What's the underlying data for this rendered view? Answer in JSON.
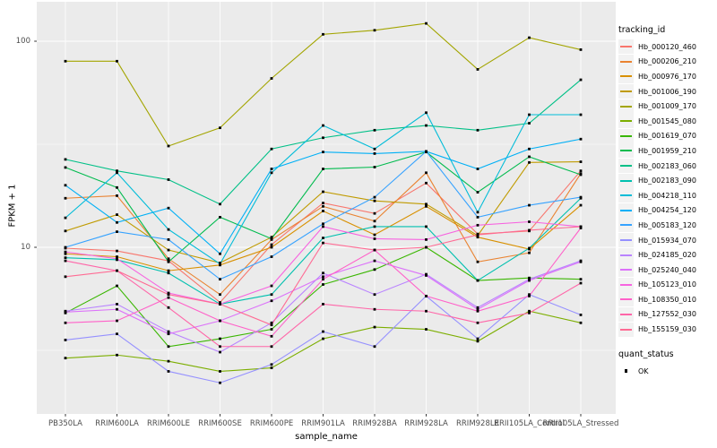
{
  "figure": {
    "background": "#FFFFFF",
    "panel_background": "#EBEBEB",
    "grid_color": "#FFFFFF",
    "tick_text_color": "#4D4D4D",
    "axis_title_color": "#000000",
    "point_color": "#000000"
  },
  "axes": {
    "y_title": "FPKM + 1",
    "x_title": "sample_name",
    "y_scale": "log10",
    "y_major_ticks": [
      {
        "label": "100",
        "value": 100
      },
      {
        "label": "10",
        "value": 10
      }
    ],
    "y_minor_gridlines": [
      31.623,
      3.1623
    ]
  },
  "legend": {
    "tracking_title": "tracking_id",
    "quant_title": "quant_status",
    "quant_items": [
      {
        "label": "OK",
        "marker": "black-square"
      }
    ]
  },
  "chart_data": {
    "type": "line",
    "title": "",
    "xlabel": "sample_name",
    "ylabel": "FPKM + 1",
    "y_scale": "log10",
    "ylim": [
      1.55,
      155
    ],
    "grid": true,
    "legend_position": "right",
    "point_marker": "black-square",
    "x_categories": [
      "PB350LA",
      "RRIM600LA",
      "RRIM600LE",
      "RRIM600SE",
      "RRIM600PE",
      "RRIM901LA",
      "RRIM928BA",
      "RRIM928LA",
      "RRIM928LE",
      "RRII105LA_Control",
      "RRII105LA_Stressed"
    ],
    "series": [
      {
        "name": "Hb_000120_460",
        "color": "#F8766D",
        "values": [
          9.9,
          9.6,
          8.6,
          5.4,
          10.3,
          16.4,
          14.6,
          20.5,
          11.6,
          12.0,
          23.5
        ]
      },
      {
        "name": "Hb_000206_210",
        "color": "#EA8331",
        "values": [
          17.3,
          17.8,
          8.8,
          5.9,
          10.9,
          15.8,
          13.4,
          23.0,
          8.5,
          9.4,
          22.8
        ]
      },
      {
        "name": "Hb_000976_170",
        "color": "#D89000",
        "values": [
          9.3,
          9.0,
          7.7,
          8.2,
          10.0,
          15.0,
          11.5,
          15.8,
          11.2,
          9.8,
          16.0
        ]
      },
      {
        "name": "Hb_001006_190",
        "color": "#C09B00",
        "values": [
          12.0,
          14.4,
          9.7,
          8.4,
          11.2,
          18.6,
          16.8,
          16.2,
          11.4,
          25.8,
          26.0
        ]
      },
      {
        "name": "Hb_001009_170",
        "color": "#A3A500",
        "values": [
          80,
          80,
          31,
          38,
          66,
          108,
          113,
          122,
          73,
          104,
          91
        ]
      },
      {
        "name": "Hb_001545_080",
        "color": "#7CAE00",
        "values": [
          2.9,
          3.0,
          2.8,
          2.5,
          2.6,
          3.6,
          4.1,
          4.0,
          3.5,
          4.9,
          4.3
        ]
      },
      {
        "name": "Hb_001619_070",
        "color": "#39B600",
        "values": [
          4.8,
          6.5,
          3.3,
          3.6,
          4.0,
          6.6,
          7.8,
          10.0,
          6.9,
          7.1,
          7.0
        ]
      },
      {
        "name": "Hb_001959_210",
        "color": "#00BB4E",
        "values": [
          24.4,
          19.5,
          8.5,
          14.0,
          11.0,
          24.0,
          24.5,
          29.0,
          18.5,
          27.5,
          22.5
        ]
      },
      {
        "name": "Hb_002183_060",
        "color": "#00C087",
        "values": [
          26.7,
          23.5,
          21.3,
          16.2,
          30.0,
          34.0,
          37.0,
          39.0,
          37.0,
          40.0,
          65.0
        ]
      },
      {
        "name": "Hb_002183_090",
        "color": "#00C0AF",
        "values": [
          8.9,
          8.7,
          7.5,
          5.3,
          5.9,
          11.1,
          12.6,
          12.6,
          6.9,
          9.9,
          17.3
        ]
      },
      {
        "name": "Hb_004218_110",
        "color": "#00BCD8",
        "values": [
          13.9,
          23.0,
          12.2,
          8.3,
          23.0,
          39.0,
          30.0,
          45.0,
          14.8,
          44.0,
          44.0
        ]
      },
      {
        "name": "Hb_004254_120",
        "color": "#00B0F6",
        "values": [
          20.0,
          13.2,
          15.5,
          9.3,
          24.0,
          29.0,
          28.5,
          29.2,
          24.0,
          30.0,
          33.5
        ]
      },
      {
        "name": "Hb_005183_120",
        "color": "#35A2FF",
        "values": [
          10.0,
          11.9,
          10.9,
          7.0,
          9.0,
          13.0,
          17.5,
          29.2,
          14.0,
          16.0,
          17.5
        ]
      },
      {
        "name": "Hb_015934_070",
        "color": "#9590FF",
        "values": [
          3.55,
          3.8,
          2.5,
          2.2,
          2.7,
          3.9,
          3.3,
          5.8,
          3.6,
          5.9,
          4.7
        ]
      },
      {
        "name": "Hb_024185_020",
        "color": "#B983FF",
        "values": [
          4.9,
          5.3,
          3.9,
          3.1,
          4.3,
          7.5,
          5.9,
          7.4,
          5.1,
          7.0,
          8.6
        ]
      },
      {
        "name": "Hb_025240_040",
        "color": "#DC71FA",
        "values": [
          4.85,
          5.0,
          3.8,
          4.4,
          5.5,
          7.2,
          8.6,
          7.3,
          5.0,
          6.9,
          8.5
        ]
      },
      {
        "name": "Hb_105123_010",
        "color": "#F763E0",
        "values": [
          9.5,
          8.8,
          6.0,
          5.3,
          6.5,
          12.6,
          11.0,
          10.9,
          12.8,
          13.3,
          12.6
        ]
      },
      {
        "name": "Hb_108350_010",
        "color": "#FF61C9",
        "values": [
          4.3,
          4.4,
          5.7,
          4.4,
          3.7,
          7.0,
          9.7,
          5.8,
          4.9,
          5.8,
          12.4
        ]
      },
      {
        "name": "Hb_127552_030",
        "color": "#FF65A8",
        "values": [
          8.6,
          7.7,
          5.1,
          3.3,
          3.3,
          5.3,
          5.0,
          4.9,
          4.3,
          4.8,
          6.7
        ]
      },
      {
        "name": "Hb_155159_030",
        "color": "#FF6B94",
        "values": [
          7.2,
          7.7,
          5.9,
          5.3,
          4.2,
          10.5,
          9.7,
          10.0,
          11.5,
          12.1,
          12.6
        ]
      }
    ]
  }
}
